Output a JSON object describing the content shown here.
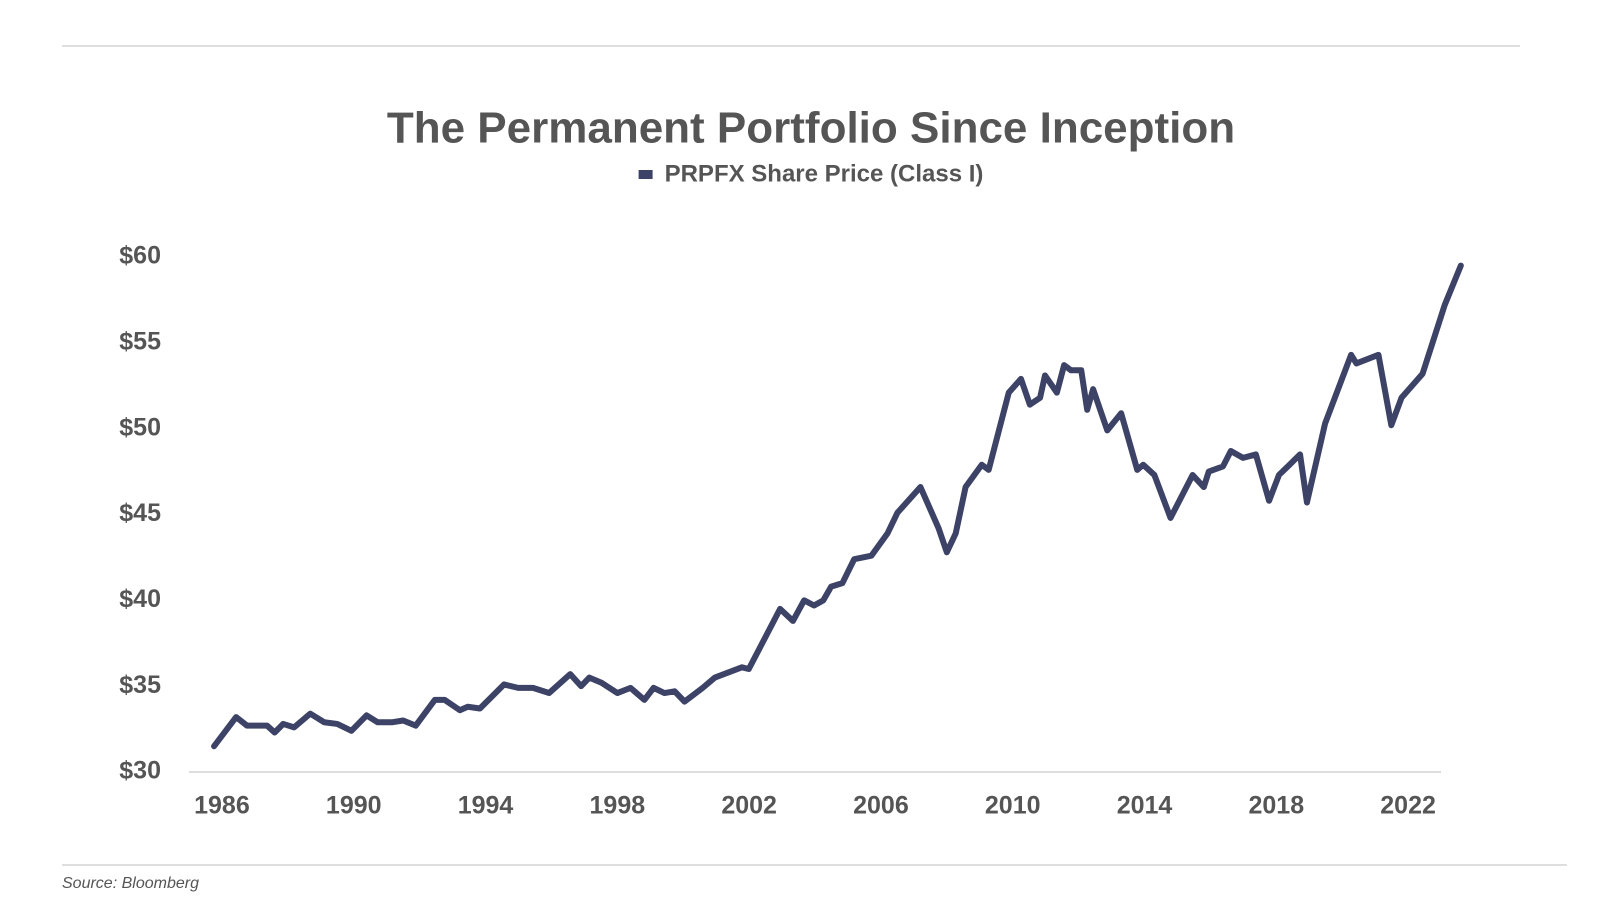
{
  "chart_data": {
    "type": "line",
    "title": "The Permanent Portfolio Since Inception",
    "source": "Source: Bloomberg",
    "x": [
      1985.76,
      1986.43,
      1986.76,
      1987.37,
      1987.6,
      1987.86,
      1988.19,
      1988.68,
      1989.1,
      1989.5,
      1989.93,
      1990.39,
      1990.72,
      1991.18,
      1991.5,
      1991.88,
      1992.46,
      1992.76,
      1993.22,
      1993.46,
      1993.83,
      1994.56,
      1994.99,
      1995.44,
      1995.93,
      1996.57,
      1996.9,
      1997.15,
      1997.52,
      1998.0,
      1998.4,
      1998.82,
      1999.1,
      1999.43,
      1999.74,
      2000.04,
      2000.59,
      2000.96,
      2001.78,
      2001.99,
      2002.94,
      2003.33,
      2003.67,
      2003.97,
      2004.25,
      2004.49,
      2004.83,
      2005.19,
      2005.71,
      2006.2,
      2006.5,
      2007.2,
      2007.75,
      2008.0,
      2008.27,
      2008.57,
      2009.06,
      2009.27,
      2009.88,
      2010.25,
      2010.52,
      2010.83,
      2010.98,
      2011.34,
      2011.56,
      2011.77,
      2012.08,
      2012.26,
      2012.44,
      2012.87,
      2013.29,
      2013.78,
      2013.96,
      2014.3,
      2014.79,
      2015.46,
      2015.8,
      2015.95,
      2016.38,
      2016.62,
      2016.99,
      2017.38,
      2017.78,
      2018.08,
      2018.35,
      2018.72,
      2018.93,
      2019.48,
      2020.27,
      2020.43,
      2021.1,
      2021.49,
      2021.8,
      2022.44,
      2023.11,
      2023.6
    ],
    "series": [
      {
        "name": "PRPFX Share Price (Class I)",
        "color": "#3d4366",
        "values": [
          31.5,
          33.2,
          32.7,
          32.7,
          32.3,
          32.8,
          32.6,
          33.4,
          32.9,
          32.8,
          32.4,
          33.3,
          32.9,
          32.9,
          33.0,
          32.7,
          34.2,
          34.2,
          33.6,
          33.8,
          33.7,
          35.1,
          34.9,
          34.9,
          34.6,
          35.7,
          35.0,
          35.5,
          35.2,
          34.6,
          34.9,
          34.2,
          34.9,
          34.6,
          34.7,
          34.1,
          34.9,
          35.5,
          36.1,
          36.0,
          39.5,
          38.8,
          40.0,
          39.7,
          40.0,
          40.8,
          41.0,
          42.4,
          42.6,
          43.9,
          45.1,
          46.6,
          44.2,
          42.8,
          43.9,
          46.6,
          47.9,
          47.6,
          52.1,
          52.9,
          51.4,
          51.8,
          53.1,
          52.1,
          53.7,
          53.4,
          53.4,
          51.1,
          52.3,
          49.9,
          50.9,
          47.6,
          47.9,
          47.3,
          44.8,
          47.3,
          46.6,
          47.5,
          47.8,
          48.7,
          48.3,
          48.5,
          45.8,
          47.3,
          47.8,
          48.5,
          45.7,
          50.3,
          54.3,
          53.8,
          54.3,
          50.2,
          51.8,
          53.2,
          57.2,
          59.5
        ]
      }
    ],
    "xlim": [
      1985,
      2024
    ],
    "xticks": [
      1986,
      1990,
      1994,
      1998,
      2002,
      2006,
      2010,
      2014,
      2018,
      2022
    ],
    "ylim": [
      30,
      60
    ],
    "yticks": [
      {
        "value": 30,
        "label": "$30"
      },
      {
        "value": 35,
        "label": "$35"
      },
      {
        "value": 40,
        "label": "$40"
      },
      {
        "value": 45,
        "label": "$45"
      },
      {
        "value": 50,
        "label": "$50"
      },
      {
        "value": 55,
        "label": "$55"
      },
      {
        "value": 60,
        "label": "$60"
      }
    ],
    "legend": "top"
  }
}
